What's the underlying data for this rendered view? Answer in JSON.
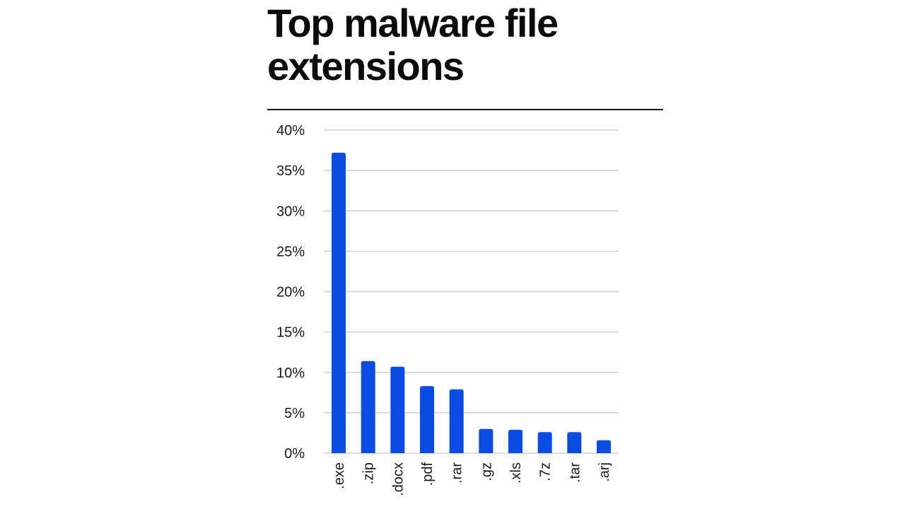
{
  "chart_data": {
    "type": "bar",
    "title": "Top malware file extensions",
    "xlabel": "",
    "ylabel": "",
    "categories": [
      ".exe",
      ".zip",
      ".docx",
      ".pdf",
      ".rar",
      ".gz",
      ".xls",
      ".7z",
      ".tar",
      ".arj"
    ],
    "values": [
      37.2,
      11.4,
      10.7,
      8.3,
      7.9,
      3.0,
      2.9,
      2.6,
      2.6,
      1.6
    ],
    "y_ticks": [
      "0%",
      "5%",
      "10%",
      "15%",
      "20%",
      "25%",
      "30%",
      "35%",
      "40%"
    ],
    "ylim": [
      0,
      40
    ],
    "grid": true,
    "legend": "none",
    "bar_color": "#0b4de3"
  }
}
